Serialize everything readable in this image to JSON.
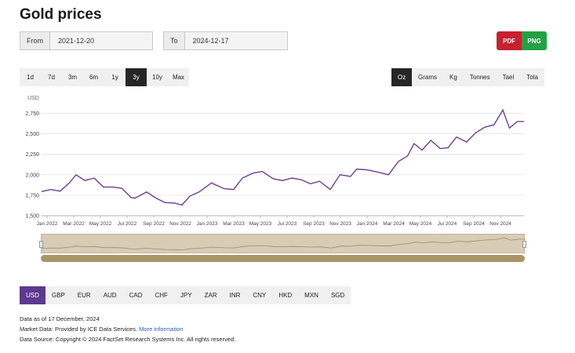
{
  "page": {
    "title": "Gold prices"
  },
  "date_range": {
    "from_label": "From",
    "from_value": "2021-12-20",
    "to_label": "To",
    "to_value": "2024-12-17"
  },
  "export": {
    "pdf_label": "PDF",
    "png_label": "PNG"
  },
  "ranges": {
    "items": [
      "1d",
      "7d",
      "3m",
      "6m",
      "1y",
      "3y",
      "10y",
      "Max"
    ],
    "active": "3y"
  },
  "units": {
    "items": [
      "Oz",
      "Grams",
      "Kg",
      "Tonnes",
      "Tael",
      "Tola"
    ],
    "active": "Oz"
  },
  "currencies": {
    "items": [
      "USD",
      "GBP",
      "EUR",
      "AUD",
      "CAD",
      "CHF",
      "JPY",
      "ZAR",
      "INR",
      "CNY",
      "HKD",
      "MXN",
      "SGD"
    ],
    "active": "USD"
  },
  "footer": {
    "data_as_of_prefix": "Data as of",
    "data_as_of_date": "17 December, 2024",
    "market_data": "Market Data: Provided by ICE Data Services.",
    "more_info": "More information",
    "source": "Data Source: Copyright © 2024 FactSet Research Systems Inc. All rights reserved."
  },
  "colors": {
    "line": "#6b3f96",
    "active_currency": "#5c3a8f",
    "pdf": "#c8202f",
    "png": "#25a046",
    "navigator": "#d8ccb5",
    "scrollbar": "#a89568"
  },
  "chart_data": {
    "type": "line",
    "ylabel": "USD",
    "ylim": [
      1500,
      2850
    ],
    "yticks": [
      1500,
      1750,
      2000,
      2250,
      2500,
      2750
    ],
    "ytick_labels": [
      "1,500",
      "1,750",
      "2,000",
      "2,250",
      "2,500",
      "2,750"
    ],
    "xtick_labels": [
      "Jan 2022",
      "Mar 2022",
      "May 2022",
      "Jul 2022",
      "Sep 2022",
      "Nov 2022",
      "Jan 2023",
      "Mar 2023",
      "May 2023",
      "Jul 2023",
      "Sep 2023",
      "Nov 2023",
      "Jan 2024",
      "Mar 2024",
      "May 2024",
      "Jul 2024",
      "Sep 2024",
      "Nov 2024"
    ],
    "grid": true,
    "series": [
      {
        "x": [
          "2021-12-20",
          "2022-01-10",
          "2022-01-31",
          "2022-02-21",
          "2022-03-08",
          "2022-03-28",
          "2022-04-18",
          "2022-05-09",
          "2022-05-30",
          "2022-06-20",
          "2022-07-11",
          "2022-07-20",
          "2022-08-15",
          "2022-09-05",
          "2022-09-26",
          "2022-10-17",
          "2022-11-03",
          "2022-11-21",
          "2022-12-12",
          "2023-01-09",
          "2023-02-06",
          "2023-02-28",
          "2023-03-20",
          "2023-04-13",
          "2023-05-04",
          "2023-05-29",
          "2023-06-19",
          "2023-07-10",
          "2023-07-31",
          "2023-08-21",
          "2023-09-11",
          "2023-10-05",
          "2023-10-27",
          "2023-11-20",
          "2023-12-04",
          "2023-12-27",
          "2024-01-22",
          "2024-02-14",
          "2024-03-07",
          "2024-03-28",
          "2024-04-12",
          "2024-04-30",
          "2024-05-20",
          "2024-06-10",
          "2024-06-28",
          "2024-07-17",
          "2024-08-09",
          "2024-08-29",
          "2024-09-19",
          "2024-10-10",
          "2024-10-30",
          "2024-11-14",
          "2024-12-02",
          "2024-12-17"
        ],
        "values": [
          1795,
          1820,
          1800,
          1900,
          2000,
          1930,
          1960,
          1850,
          1850,
          1835,
          1720,
          1715,
          1790,
          1715,
          1660,
          1655,
          1630,
          1740,
          1790,
          1900,
          1830,
          1820,
          1960,
          2020,
          2040,
          1950,
          1930,
          1960,
          1940,
          1890,
          1920,
          1820,
          2000,
          1980,
          2070,
          2060,
          2030,
          2000,
          2160,
          2230,
          2380,
          2300,
          2420,
          2320,
          2330,
          2460,
          2400,
          2510,
          2580,
          2610,
          2790,
          2570,
          2650,
          2650
        ]
      }
    ]
  }
}
